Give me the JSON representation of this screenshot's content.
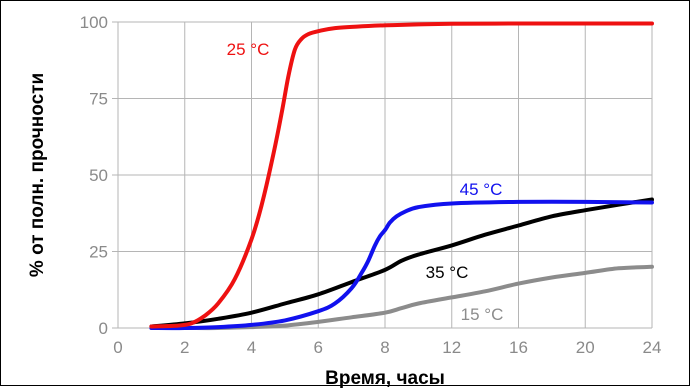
{
  "chart_data": {
    "type": "line",
    "xlabel": "Время, часы",
    "ylabel": "% от полн. прочности",
    "xlim": [
      0,
      24
    ],
    "ylim": [
      0,
      100
    ],
    "x_ticks": [
      "0",
      "2",
      "4",
      "6",
      "8",
      "12",
      "16",
      "20",
      "24"
    ],
    "x_tick_values": [
      0,
      2,
      4,
      6,
      8,
      12,
      16,
      20,
      24
    ],
    "y_ticks": [
      "0",
      "25",
      "50",
      "75",
      "100"
    ],
    "y_tick_values": [
      0,
      25,
      50,
      75,
      100
    ],
    "grid": true,
    "series": [
      {
        "name": "25 °C",
        "color": "#ee1111",
        "x": [
          1,
          1.8,
          2.2,
          2.6,
          3.0,
          3.5,
          4.0,
          4.3,
          4.6,
          4.9,
          5.1,
          5.3,
          5.5,
          5.7,
          6.0,
          6.5,
          7.5,
          8.5,
          10,
          12,
          16,
          20,
          24
        ],
        "y": [
          0.5,
          0.8,
          1.5,
          4,
          8,
          16,
          29,
          40,
          54,
          70,
          82,
          91,
          94.5,
          96,
          97,
          98,
          98.7,
          99,
          99.2,
          99.4,
          99.5,
          99.5,
          99.5
        ]
      },
      {
        "name": "45 °C",
        "color": "#1111ee",
        "x": [
          1,
          2,
          3,
          4,
          5,
          6,
          6.5,
          7,
          7.3,
          7.5,
          7.7,
          7.85,
          8.0,
          8.3,
          8.7,
          9.2,
          10,
          12,
          16,
          20,
          24
        ],
        "y": [
          0,
          0,
          0.3,
          1,
          2.5,
          5.5,
          8,
          13,
          18,
          22,
          27,
          30,
          32,
          34.5,
          36.5,
          38,
          39.5,
          40.7,
          41.2,
          41.2,
          41
        ]
      },
      {
        "name": "35 °C",
        "color": "#000000",
        "x": [
          1,
          2,
          3,
          4,
          5,
          6,
          7,
          8,
          9,
          10,
          12,
          14,
          16,
          18,
          20,
          22,
          24
        ],
        "y": [
          0.5,
          1.5,
          3,
          5,
          8,
          11,
          15,
          19,
          22,
          24,
          27,
          30.5,
          33.5,
          36.5,
          38.5,
          40.3,
          42
        ]
      },
      {
        "name": "15 °C",
        "color": "#8c8c8c",
        "x": [
          1,
          2,
          3,
          4,
          5,
          6,
          7,
          8,
          9,
          10,
          12,
          14,
          16,
          18,
          20,
          22,
          24
        ],
        "y": [
          0,
          0,
          0,
          0.3,
          0.8,
          2,
          3.5,
          5,
          6.5,
          8,
          10,
          12,
          14.5,
          16.5,
          18,
          19.5,
          20
        ]
      }
    ]
  }
}
